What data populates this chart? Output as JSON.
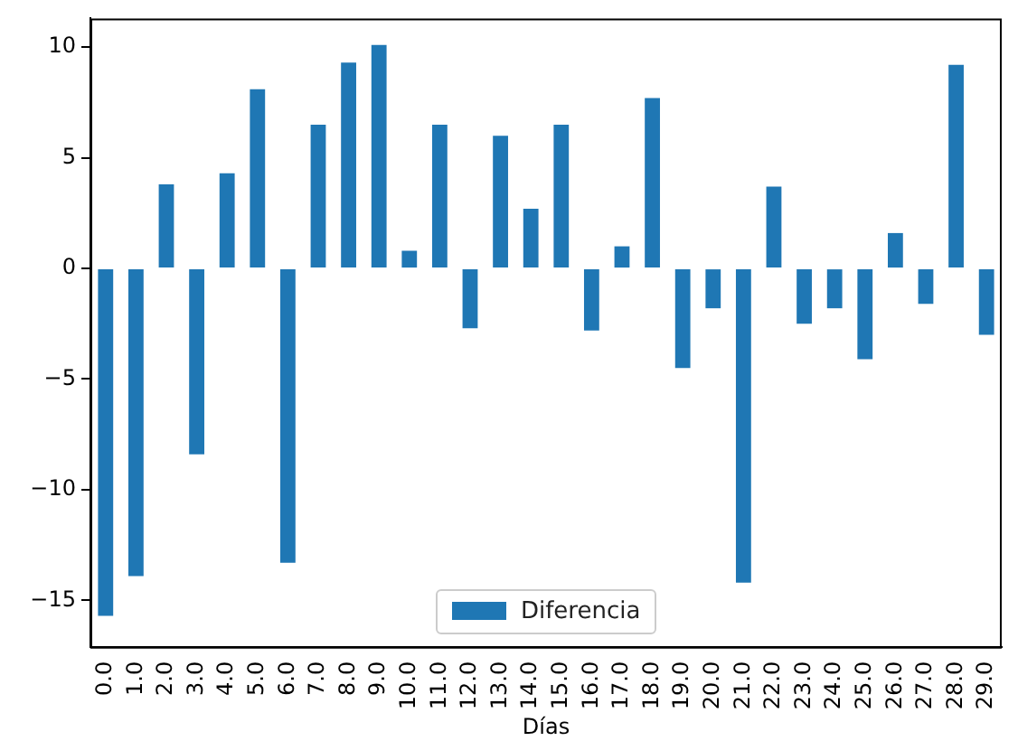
{
  "chart_data": {
    "type": "bar",
    "xlabel": "Días",
    "categories": [
      "0.0",
      "1.0",
      "2.0",
      "3.0",
      "4.0",
      "5.0",
      "6.0",
      "7.0",
      "8.0",
      "9.0",
      "10.0",
      "11.0",
      "12.0",
      "13.0",
      "14.0",
      "15.0",
      "16.0",
      "17.0",
      "18.0",
      "19.0",
      "20.0",
      "21.0",
      "22.0",
      "23.0",
      "24.0",
      "25.0",
      "26.0",
      "27.0",
      "28.0",
      "29.0"
    ],
    "series": [
      {
        "name": "Diferencia",
        "color": "#1f77b4",
        "values": [
          -15.7,
          -13.9,
          3.8,
          -8.4,
          4.3,
          8.1,
          -13.3,
          6.5,
          9.3,
          10.1,
          0.8,
          6.5,
          -2.7,
          6.0,
          2.7,
          6.5,
          -2.8,
          1.0,
          7.7,
          -4.5,
          -1.8,
          -14.2,
          3.7,
          -2.5,
          -1.8,
          -4.1,
          1.6,
          -1.6,
          9.2,
          -3.0
        ]
      }
    ],
    "ylim": [
      -17.1,
      11.3
    ],
    "yticks": [
      -15,
      -10,
      -5,
      0,
      5,
      10
    ],
    "grid": false,
    "legend": "bottom"
  }
}
